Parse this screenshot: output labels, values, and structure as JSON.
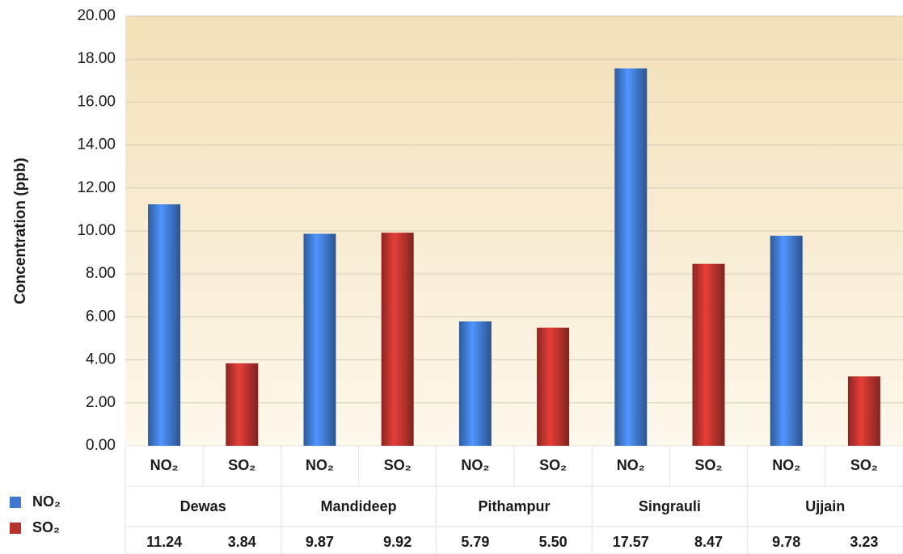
{
  "chart_data": {
    "type": "bar",
    "y_label": "Concentration (ppb)",
    "categories": [
      "NO₂",
      "SO₂",
      "NO₂",
      "SO₂",
      "NO₂",
      "SO₂",
      "NO₂",
      "SO₂",
      "NO₂",
      "SO₂"
    ],
    "groups": [
      "Dewas",
      "Mandideep",
      "Pithampur",
      "Singrauli",
      "Ujjain"
    ],
    "series": [
      {
        "name": "NO₂",
        "color": "#3f78cc",
        "values": [
          11.24,
          null,
          9.87,
          null,
          5.79,
          null,
          17.57,
          null,
          9.78,
          null
        ],
        "value_labels": [
          "11.24",
          null,
          "9.87",
          null,
          "5.79",
          null,
          "17.57",
          null,
          "9.78",
          null
        ]
      },
      {
        "name": "SO₂",
        "color": "#b8322c",
        "values": [
          null,
          3.84,
          null,
          9.92,
          null,
          5.5,
          null,
          8.47,
          null,
          3.23
        ],
        "value_labels": [
          null,
          "3.84",
          null,
          "9.92",
          null,
          "5.50",
          null,
          "8.47",
          null,
          "3.23"
        ]
      }
    ],
    "ylim": [
      0,
      20
    ],
    "yticks": [
      {
        "value": 0,
        "label": "0.00"
      },
      {
        "value": 2,
        "label": "2.00"
      },
      {
        "value": 4,
        "label": "4.00"
      },
      {
        "value": 6,
        "label": "6.00"
      },
      {
        "value": 8,
        "label": "8.00"
      },
      {
        "value": 10,
        "label": "10.00"
      },
      {
        "value": 12,
        "label": "12.00"
      },
      {
        "value": 14,
        "label": "14.00"
      },
      {
        "value": 16,
        "label": "16.00"
      },
      {
        "value": 18,
        "label": "18.00"
      },
      {
        "value": 20,
        "label": "20.00"
      }
    ],
    "grid": true
  }
}
